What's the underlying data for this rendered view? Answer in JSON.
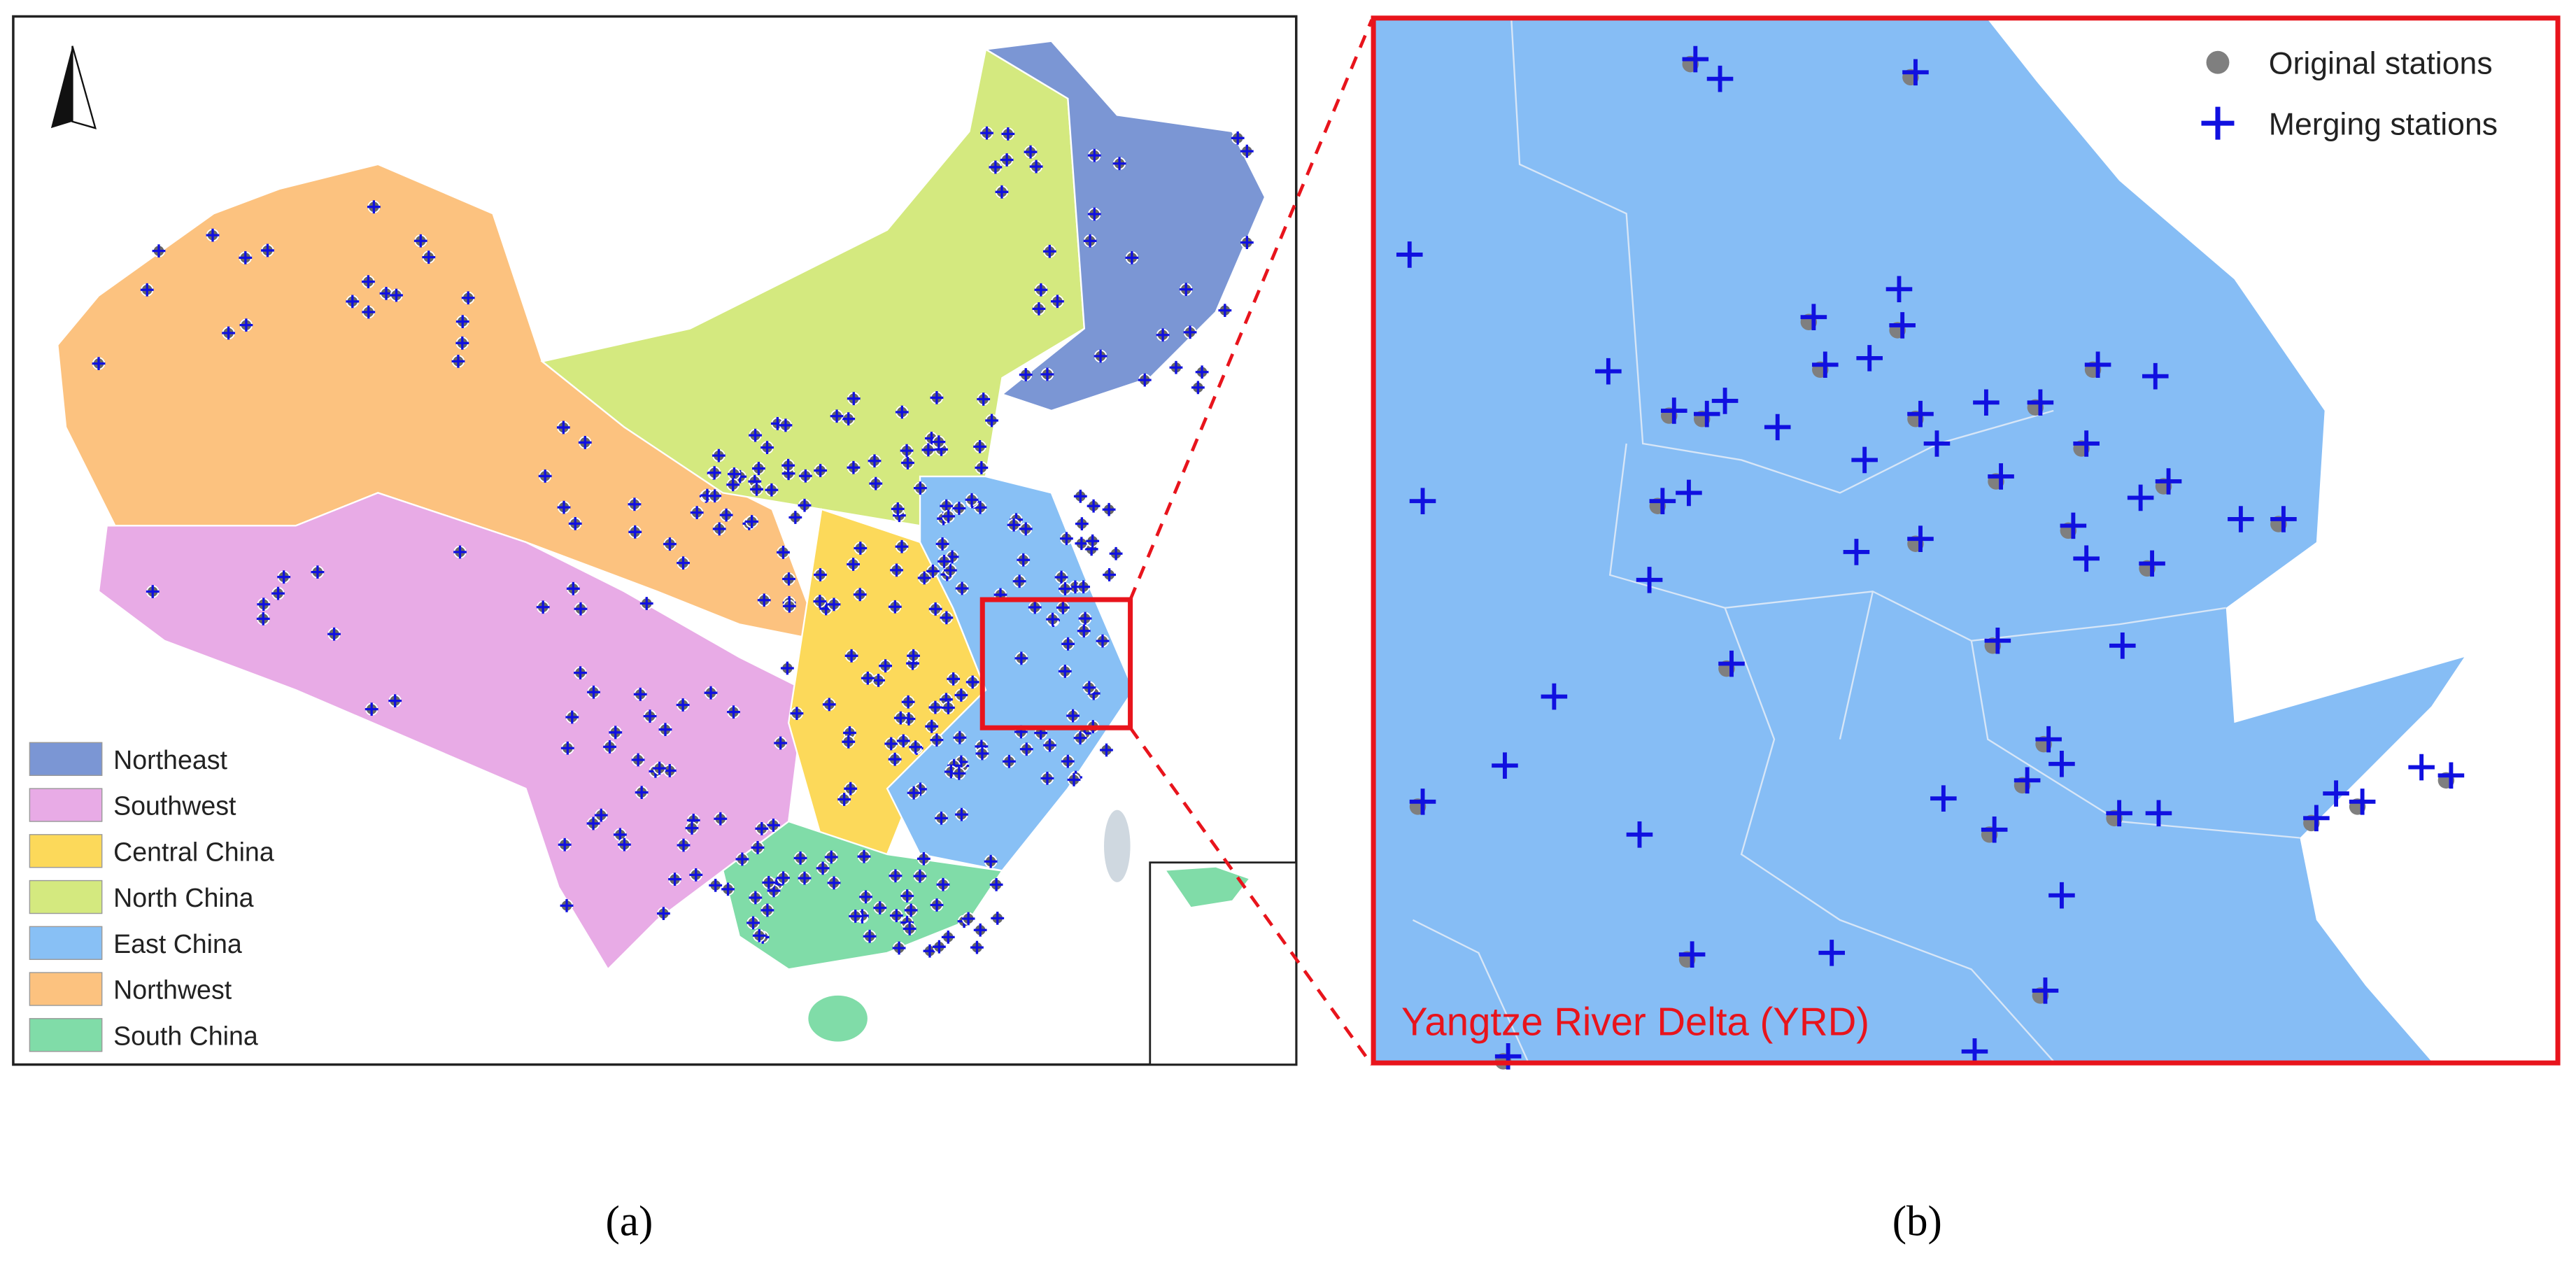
{
  "panel_a": {
    "legend": [
      {
        "label": "Northeast",
        "color": "#7b96d4"
      },
      {
        "label": "Southwest",
        "color": "#e8abe6"
      },
      {
        "label": "Central China",
        "color": "#fcd95a"
      },
      {
        "label": "North China",
        "color": "#d4e97f"
      },
      {
        "label": "East China",
        "color": "#88c0f5"
      },
      {
        "label": "Northwest",
        "color": "#fcc27f"
      },
      {
        "label": "South China",
        "color": "#80dca8"
      }
    ]
  },
  "panel_b": {
    "legend": [
      {
        "label": "Original stations",
        "color": "#7f7f7f"
      },
      {
        "label": "Merging stations",
        "color": "#1010e0"
      }
    ],
    "region_label": "Yangtze River Delta (YRD)"
  },
  "captions": [
    "(a)",
    "(b)"
  ]
}
